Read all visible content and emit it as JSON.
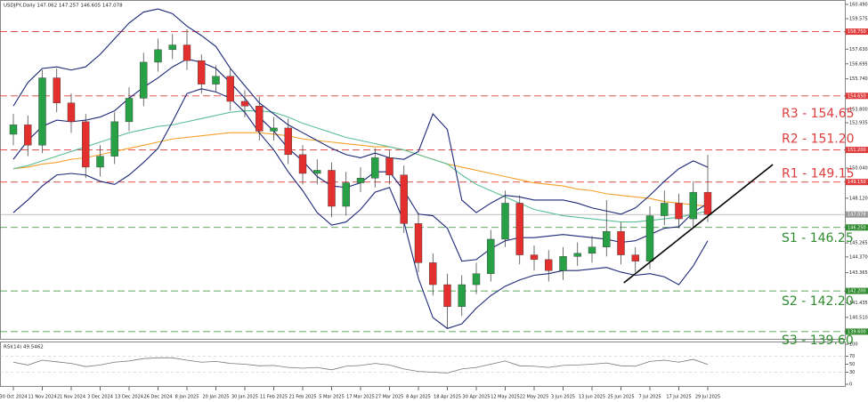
{
  "chart_data": {
    "type": "candlestick",
    "title": "USDJPY,Daily  147.062 147.257 146.605 147.078",
    "categories": [
      "30 Oct 2024",
      null,
      "11 Nov 2024",
      null,
      "21 Nov 2024",
      null,
      "3 Dec 2024",
      null,
      "13 Dec 2024",
      null,
      "26 Dec 2024",
      null,
      "8 Jan 2025",
      null,
      "20 Jan 2025",
      null,
      "30 Jan 2025",
      null,
      "11 Feb 2025",
      null,
      "21 Feb 2025",
      null,
      "5 Mar 2025",
      null,
      "17 Mar 2025",
      null,
      "27 Mar 2025",
      null,
      "8 Apr 2025",
      null,
      "18 Apr 2025",
      null,
      "30 Apr 2025",
      null,
      "12 May 2025",
      null,
      "22 May 2025",
      null,
      "3 Jun 2025",
      null,
      "13 Jun 2025",
      null,
      "25 Jun 2025",
      null,
      "7 Jul 2025",
      null,
      "17 Jul 2025",
      null,
      "29 Jul 2025"
    ],
    "open": [
      152.2,
      152.8,
      151.5,
      155.8,
      154.2,
      153.0,
      150.1,
      150.8,
      153.0,
      154.5,
      156.8,
      157.6,
      157.9,
      156.9,
      155.4,
      155.9,
      154.3,
      154.0,
      152.4,
      152.6,
      150.9,
      149.7,
      149.9,
      147.6,
      149.1,
      149.4,
      150.7,
      149.6,
      146.5,
      144.0,
      142.6,
      141.2,
      142.6,
      143.3,
      145.5,
      147.8,
      144.5,
      144.2,
      143.5,
      144.4,
      144.6,
      145.0,
      146.0,
      144.5,
      144.1,
      147.0,
      147.8,
      146.8,
      148.5
    ],
    "high": [
      153.5,
      153.4,
      156.3,
      156.4,
      154.8,
      153.5,
      151.5,
      153.6,
      155.2,
      157.4,
      158.3,
      158.6,
      158.9,
      157.3,
      156.6,
      156.4,
      155.0,
      154.6,
      153.3,
      153.2,
      151.5,
      150.6,
      150.4,
      149.8,
      150.1,
      151.3,
      151.2,
      150.2,
      147.2,
      144.6,
      143.3,
      143.2,
      144.0,
      146.1,
      148.6,
      148.3,
      145.1,
      144.8,
      145.0,
      145.3,
      145.7,
      148.0,
      146.6,
      145.0,
      147.6,
      148.6,
      148.4,
      149.2,
      150.9
    ],
    "low": [
      151.5,
      150.8,
      151.0,
      153.6,
      152.3,
      149.4,
      149.5,
      150.3,
      152.4,
      154.0,
      156.2,
      157.0,
      156.3,
      154.8,
      154.9,
      153.7,
      153.3,
      151.8,
      151.8,
      150.3,
      149.0,
      149.0,
      146.9,
      147.0,
      148.5,
      148.8,
      149.0,
      145.9,
      143.4,
      141.9,
      139.8,
      140.6,
      142.0,
      142.8,
      145.0,
      143.9,
      143.5,
      142.8,
      142.9,
      143.8,
      144.0,
      144.4,
      143.9,
      143.4,
      143.6,
      146.4,
      146.2,
      146.2,
      146.6
    ],
    "close": [
      152.8,
      151.5,
      155.8,
      154.2,
      153.0,
      150.1,
      150.8,
      153.0,
      154.5,
      156.8,
      157.6,
      157.9,
      156.9,
      155.4,
      155.9,
      154.3,
      154.0,
      152.4,
      152.6,
      150.9,
      149.7,
      149.9,
      147.6,
      149.1,
      149.4,
      150.7,
      149.6,
      146.5,
      144.0,
      142.6,
      141.2,
      142.6,
      143.3,
      145.5,
      147.8,
      144.5,
      144.2,
      143.5,
      144.4,
      144.6,
      145.0,
      146.0,
      144.5,
      144.1,
      147.0,
      147.8,
      146.8,
      148.5,
      147.078
    ],
    "up_color": "#27a046",
    "down_color": "#e3302e",
    "overlays": [
      {
        "color": "#f5a02a",
        "values": [
          150.0,
          150.1,
          150.3,
          150.4,
          150.6,
          150.7,
          150.9,
          151.1,
          151.3,
          151.5,
          151.7,
          151.9,
          152.0,
          152.1,
          152.2,
          152.3,
          152.3,
          152.3,
          152.2,
          152.1,
          151.9,
          151.8,
          151.7,
          151.6,
          151.5,
          151.4,
          151.4,
          151.2,
          150.9,
          150.6,
          150.3,
          150.1,
          149.9,
          149.7,
          149.5,
          149.3,
          149.1,
          149.0,
          148.9,
          148.7,
          148.6,
          148.4,
          148.3,
          148.2,
          148.1,
          147.9,
          147.8,
          147.7,
          147.6
        ]
      },
      {
        "color": "#5cbf98",
        "values": [
          150.0,
          150.2,
          150.5,
          150.8,
          151.1,
          151.4,
          151.7,
          152.0,
          152.3,
          152.5,
          152.7,
          152.8,
          153.0,
          153.2,
          153.4,
          153.6,
          153.7,
          153.7,
          153.6,
          153.3,
          152.9,
          152.6,
          152.3,
          152.0,
          151.8,
          151.6,
          151.4,
          151.2,
          150.9,
          150.6,
          150.3,
          149.6,
          149.0,
          148.6,
          148.2,
          147.8,
          147.4,
          147.2,
          147.0,
          146.9,
          146.8,
          146.7,
          146.6,
          146.6,
          146.7,
          146.8,
          146.9,
          147.1,
          147.3
        ]
      },
      {
        "color": "#1c2778",
        "values": [
          154.0,
          155.5,
          156.4,
          156.5,
          156.3,
          156.5,
          157.3,
          158.3,
          159.3,
          160.0,
          160.2,
          159.9,
          159.1,
          158.5,
          157.8,
          156.4,
          155.3,
          154.2,
          153.5,
          152.8,
          152.3,
          151.8,
          151.3,
          150.9,
          150.7,
          151.0,
          150.7,
          150.6,
          151.1,
          153.5,
          152.5,
          148.0,
          147.2,
          147.8,
          148.3,
          148.2,
          148.0,
          148.0,
          148.0,
          147.8,
          147.5,
          147.3,
          147.1,
          147.5,
          148.3,
          149.2,
          150.0,
          150.5,
          150.1
        ]
      },
      {
        "color": "#1c2778",
        "values": [
          150.6,
          151.8,
          152.7,
          153.1,
          153.0,
          153.1,
          153.3,
          153.7,
          154.5,
          155.2,
          155.8,
          156.5,
          157.0,
          156.8,
          156.4,
          155.5,
          154.5,
          153.3,
          152.4,
          151.3,
          150.5,
          149.5,
          148.9,
          148.8,
          149.1,
          149.8,
          149.8,
          148.6,
          147.1,
          147.0,
          146.2,
          144.1,
          144.2,
          144.9,
          145.4,
          145.6,
          145.6,
          145.7,
          145.8,
          145.7,
          145.6,
          145.5,
          145.3,
          145.4,
          145.8,
          146.2,
          146.3,
          147.2,
          147.8
        ]
      },
      {
        "color": "#1c2778",
        "values": [
          147.2,
          148.0,
          148.9,
          149.6,
          149.7,
          149.6,
          149.2,
          149.0,
          149.6,
          150.4,
          151.3,
          153.0,
          154.8,
          155.1,
          154.9,
          154.5,
          153.6,
          152.3,
          151.2,
          149.8,
          148.6,
          147.2,
          146.4,
          146.6,
          147.4,
          148.5,
          148.8,
          146.6,
          143.0,
          140.5,
          139.8,
          140.1,
          141.1,
          141.9,
          142.5,
          142.9,
          143.2,
          143.3,
          143.5,
          143.5,
          143.6,
          143.7,
          143.4,
          143.2,
          143.3,
          143.1,
          142.6,
          143.8,
          145.4
        ]
      }
    ],
    "ylim": [
      139.14,
      160.77
    ],
    "yticks": [
      {
        "value": 160.49,
        "label": "160.490"
      },
      159.575,
      {
        "value": 157.63,
        "label": "157.630"
      },
      156.695,
      {
        "value": 155.74,
        "label": "155.740"
      },
      {
        "value": 153.8,
        "label": "153.800"
      },
      152.935,
      {
        "value": 150.04,
        "label": "150.040"
      },
      {
        "value": 148.12,
        "label": "148.120"
      },
      145.265,
      {
        "value": 144.37,
        "label": "144.370"
      },
      143.365,
      141.435,
      {
        "value": 140.51,
        "label": "140.510"
      }
    ],
    "levels": [
      {
        "value": 158.75,
        "badge": "158.750",
        "color": "#e03c3c"
      },
      {
        "value": 154.65,
        "label": "R3 - 154.65",
        "badge": "154.650",
        "color": "#e03c3c"
      },
      {
        "value": 151.2,
        "label": "R2 - 151.20",
        "badge": "151.200",
        "color": "#e03c3c"
      },
      {
        "value": 149.15,
        "label": "R1 - 149.15",
        "badge": "149.150",
        "color": "#e03c3c"
      },
      {
        "value": 146.25,
        "label": "S1 - 146.25",
        "badge": "146.250",
        "color": "#2e8b2e"
      },
      {
        "value": 142.2,
        "label": "S2 - 142.20",
        "badge": "142.200",
        "color": "#2e8b2e"
      },
      {
        "value": 139.6,
        "label": "S3 - 139.60",
        "badge": "139.600",
        "color": "#2e8b2e"
      }
    ],
    "current": 147.078,
    "trendline": {
      "x": [
        42.2,
        52.5
      ],
      "y": [
        142.72,
        150.27
      ],
      "color": "#000000"
    },
    "rsi": {
      "label": "RSI(14) 49.5462",
      "color": "#777777",
      "ylim": [
        0,
        100
      ],
      "yticks": [
        100,
        70,
        50,
        30,
        0
      ],
      "levels": [
        70,
        30
      ],
      "values": [
        55,
        48,
        60,
        56,
        52,
        44,
        48,
        55,
        58,
        64,
        66,
        66,
        60,
        55,
        57,
        52,
        50,
        46,
        47,
        42,
        40,
        42,
        36,
        45,
        47,
        52,
        48,
        38,
        32,
        30,
        28,
        38,
        42,
        50,
        58,
        46,
        45,
        42,
        47,
        48,
        50,
        53,
        46,
        45,
        57,
        60,
        55,
        62,
        49.5
      ]
    }
  }
}
